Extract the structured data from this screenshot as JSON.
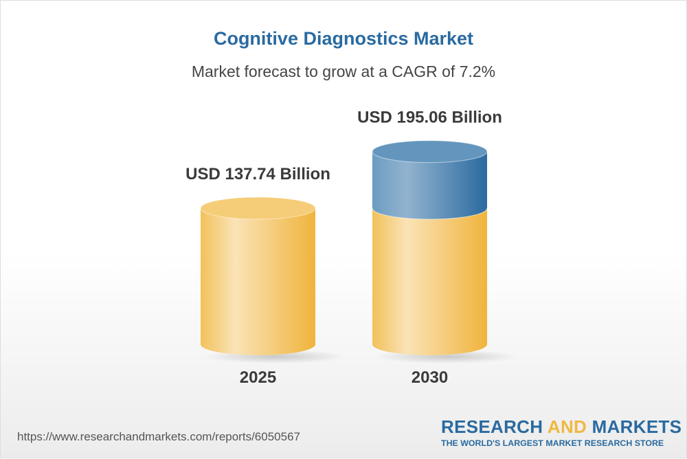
{
  "chart_data": {
    "type": "bar",
    "title": "Cognitive Diagnostics Market",
    "subtitle": "Market forecast to grow at a CAGR of 7.2%",
    "categories": [
      "2025",
      "2030"
    ],
    "values": [
      137.74,
      195.06
    ],
    "data_labels": [
      "USD 137.74 Billion",
      "USD 195.06 Billion"
    ],
    "style": "3d-cylinder",
    "colors": {
      "base": "#f2c15a",
      "growth": "#3f79a8"
    }
  },
  "footer": {
    "url": "https://www.researchandmarkets.com/reports/6050567",
    "logo_part1": "RESEARCH ",
    "logo_part2": "AND",
    "logo_part3": " MARKETS",
    "tagline": "THE WORLD'S LARGEST MARKET RESEARCH STORE"
  }
}
